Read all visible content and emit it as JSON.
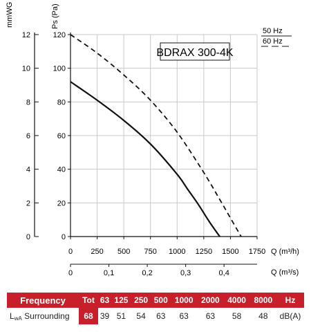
{
  "chart_data": {
    "type": "line",
    "model_label": "BDRAX 300-4K",
    "left_axis_label": "mmWG",
    "pressure_axis_label": "Ps (Pa)",
    "x_axis_label": "Q (m³/h)",
    "x2_axis_label": "Q (m³/s)",
    "xlim": [
      0,
      1750
    ],
    "ylim": [
      0,
      120
    ],
    "x_ticks": [
      "0",
      "250",
      "500",
      "750",
      "1000",
      "1250",
      "1500",
      "1750"
    ],
    "x2_ticks": [
      "0",
      "0,1",
      "0,2",
      "0,3",
      "0,4"
    ],
    "y_ticks": [
      "0",
      "20",
      "40",
      "60",
      "80",
      "100",
      "120"
    ],
    "mmwg_ticks": [
      "0",
      "2",
      "4",
      "6",
      "8",
      "10",
      "12"
    ],
    "legend": [
      {
        "label": "50 Hz",
        "style": "solid"
      },
      {
        "label": "60 Hz",
        "style": "dashed"
      }
    ],
    "grid": true,
    "series": [
      {
        "name": "50 Hz",
        "style": "solid",
        "x": [
          0,
          250,
          500,
          750,
          1000,
          1100,
          1200,
          1300,
          1400
        ],
        "y": [
          92,
          81,
          69,
          55,
          37,
          28,
          19,
          9,
          0
        ]
      },
      {
        "name": "60 Hz",
        "style": "dashed",
        "x": [
          0,
          250,
          500,
          750,
          1000,
          1250,
          1400,
          1500,
          1600
        ],
        "y": [
          120,
          109,
          96,
          81,
          62,
          38,
          22,
          11,
          0
        ]
      }
    ]
  },
  "sound_table": {
    "header_label": "Frequency",
    "tot_label": "Tot",
    "frequencies": [
      "63",
      "125",
      "250",
      "500",
      "1000",
      "2000",
      "4000",
      "8000"
    ],
    "unit_header": "Hz",
    "row_label_main": "L",
    "row_label_sub": "wA",
    "row_label_rest": " Surrounding",
    "tot_value": "68",
    "values": [
      "39",
      "51",
      "54",
      "63",
      "63",
      "63",
      "58",
      "48"
    ],
    "unit_value": "dB(A)"
  },
  "colors": {
    "accent": "#c8202a",
    "grid": "#c8c8c8",
    "curve": "#111111"
  }
}
